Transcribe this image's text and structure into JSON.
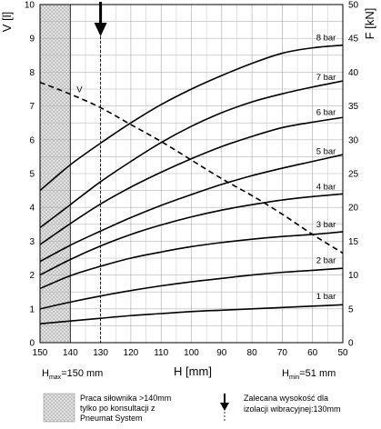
{
  "chart_data": {
    "type": "line",
    "xlabel": "H [mm]",
    "ylabel_left": "V [l]",
    "ylabel_right": "F [kN]",
    "x_ticks": [
      150,
      140,
      130,
      120,
      110,
      100,
      90,
      80,
      70,
      60,
      50
    ],
    "y_left_ticks": [
      0,
      1,
      2,
      3,
      4,
      5,
      6,
      7,
      8,
      9,
      10
    ],
    "y_right_ticks": [
      0,
      5,
      10,
      15,
      20,
      25,
      30,
      35,
      40,
      45,
      50
    ],
    "xlim": [
      150,
      50
    ],
    "ylim_left": [
      0,
      10
    ],
    "ylim_right": [
      0,
      50
    ],
    "grid": true,
    "hmax_label": {
      "main": "H",
      "sub": "max",
      "rest": "=150 mm"
    },
    "hmin_label": {
      "main": "H",
      "sub": "min",
      "rest": "=51 mm"
    },
    "recommended_height": 130,
    "max_recommended_height": 140,
    "force_series": [
      {
        "name": "1 bar",
        "x": [
          150,
          140,
          130,
          120,
          110,
          100,
          90,
          80,
          70,
          60,
          50
        ],
        "F_kN": [
          2.8,
          3.2,
          3.6,
          4.0,
          4.3,
          4.6,
          4.8,
          5.0,
          5.2,
          5.4,
          5.6
        ]
      },
      {
        "name": "2 bar",
        "x": [
          150,
          140,
          130,
          120,
          110,
          100,
          90,
          80,
          70,
          60,
          50
        ],
        "F_kN": [
          5.0,
          6.0,
          6.9,
          7.7,
          8.4,
          9.0,
          9.5,
          10.0,
          10.4,
          10.7,
          11.0
        ]
      },
      {
        "name": "3 bar",
        "x": [
          150,
          140,
          130,
          120,
          110,
          100,
          90,
          80,
          70,
          60,
          50
        ],
        "F_kN": [
          8.0,
          9.9,
          11.3,
          12.5,
          13.4,
          14.2,
          14.8,
          15.3,
          15.7,
          16.0,
          16.4
        ]
      },
      {
        "name": "4 bar",
        "x": [
          150,
          140,
          130,
          120,
          110,
          100,
          90,
          80,
          70,
          60,
          50
        ],
        "F_kN": [
          10.0,
          12.3,
          14.3,
          16.0,
          17.4,
          18.6,
          19.6,
          20.4,
          21.1,
          21.6,
          22.0
        ]
      },
      {
        "name": "5 bar",
        "x": [
          150,
          140,
          130,
          120,
          110,
          100,
          90,
          80,
          70,
          60,
          50
        ],
        "F_kN": [
          12.0,
          14.4,
          16.5,
          18.5,
          20.3,
          21.9,
          23.4,
          24.7,
          25.8,
          26.8,
          27.8
        ]
      },
      {
        "name": "6 bar",
        "x": [
          150,
          140,
          130,
          120,
          110,
          100,
          90,
          80,
          70,
          60,
          50
        ],
        "F_kN": [
          14.5,
          17.6,
          20.5,
          23.0,
          25.2,
          27.2,
          29.0,
          30.5,
          31.8,
          32.6,
          33.3
        ]
      },
      {
        "name": "7 bar",
        "x": [
          150,
          140,
          130,
          120,
          110,
          100,
          90,
          80,
          70,
          60,
          50
        ],
        "F_kN": [
          17.0,
          20.4,
          23.8,
          26.8,
          29.6,
          32.0,
          34.0,
          35.6,
          36.8,
          37.8,
          38.7
        ]
      },
      {
        "name": "8 bar",
        "x": [
          150,
          140,
          130,
          120,
          110,
          100,
          90,
          80,
          70,
          60,
          50
        ],
        "F_kN": [
          22.5,
          26.3,
          29.5,
          32.5,
          35.2,
          37.5,
          39.5,
          41.3,
          42.8,
          43.6,
          44.0
        ]
      }
    ],
    "volume_series": {
      "name": "V",
      "x": [
        150,
        140,
        130,
        120,
        110,
        100,
        90,
        80,
        70,
        60,
        50
      ],
      "V_l": [
        7.7,
        7.35,
        6.95,
        6.45,
        5.95,
        5.4,
        4.85,
        4.35,
        3.8,
        3.2,
        2.65
      ]
    }
  },
  "legend": {
    "hatch_text": [
      "Praca siłownika >140mm",
      "tylko po konsultacji z",
      "Pneumat System"
    ],
    "arrow_text": [
      "Zalecana wysokość dla",
      "izolacji wibracyjnej:130mm"
    ]
  }
}
